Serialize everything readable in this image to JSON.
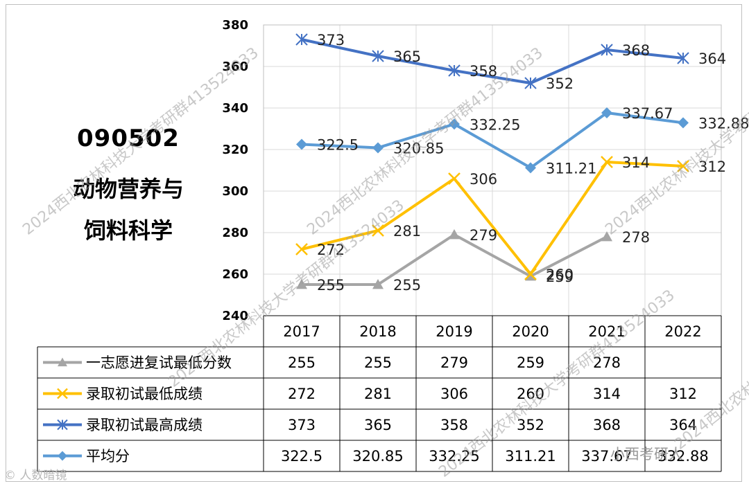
{
  "heading": {
    "code": "090502",
    "name_line1": "动物营养与",
    "name_line2": "饲料科学"
  },
  "chart_data": {
    "type": "line",
    "title": "",
    "xlabel": "",
    "ylabel": "",
    "ylim": [
      240,
      380
    ],
    "yticks": [
      240,
      260,
      280,
      300,
      320,
      340,
      360,
      380
    ],
    "grid": true,
    "legend_placement": "data table below chart",
    "categories": [
      "2017",
      "2018",
      "2019",
      "2020",
      "2021",
      "2022"
    ],
    "series": [
      {
        "name": "一志愿进复试最低分数",
        "marker": "triangle",
        "color": "#a5a5a5",
        "values": [
          255,
          255,
          279,
          259,
          278,
          null
        ],
        "labels": [
          "255",
          "255",
          "279",
          "259",
          "278",
          ""
        ]
      },
      {
        "name": "录取初试最低成绩",
        "marker": "x",
        "color": "#ffc000",
        "values": [
          272,
          281,
          306,
          260,
          314,
          312
        ],
        "labels": [
          "272",
          "281",
          "306",
          "260",
          "314",
          "312"
        ]
      },
      {
        "name": "录取初试最高成绩",
        "marker": "star",
        "color": "#4472c4",
        "values": [
          373,
          365,
          358,
          352,
          368,
          364
        ],
        "labels": [
          "373",
          "365",
          "358",
          "352",
          "368",
          "364"
        ]
      },
      {
        "name": "平均分",
        "marker": "diamond",
        "color": "#5b9bd5",
        "values": [
          322.5,
          320.85,
          332.25,
          311.21,
          337.67,
          332.88
        ],
        "labels": [
          "322.5",
          "320.85",
          "332.25",
          "311.21",
          "337.67",
          "332.88"
        ]
      }
    ]
  },
  "watermarks": {
    "diagonal": "2024西北农林科技大学考研群413524033",
    "left_bottom": "© 人数暗镜",
    "right_bottom": "小西考研人"
  }
}
